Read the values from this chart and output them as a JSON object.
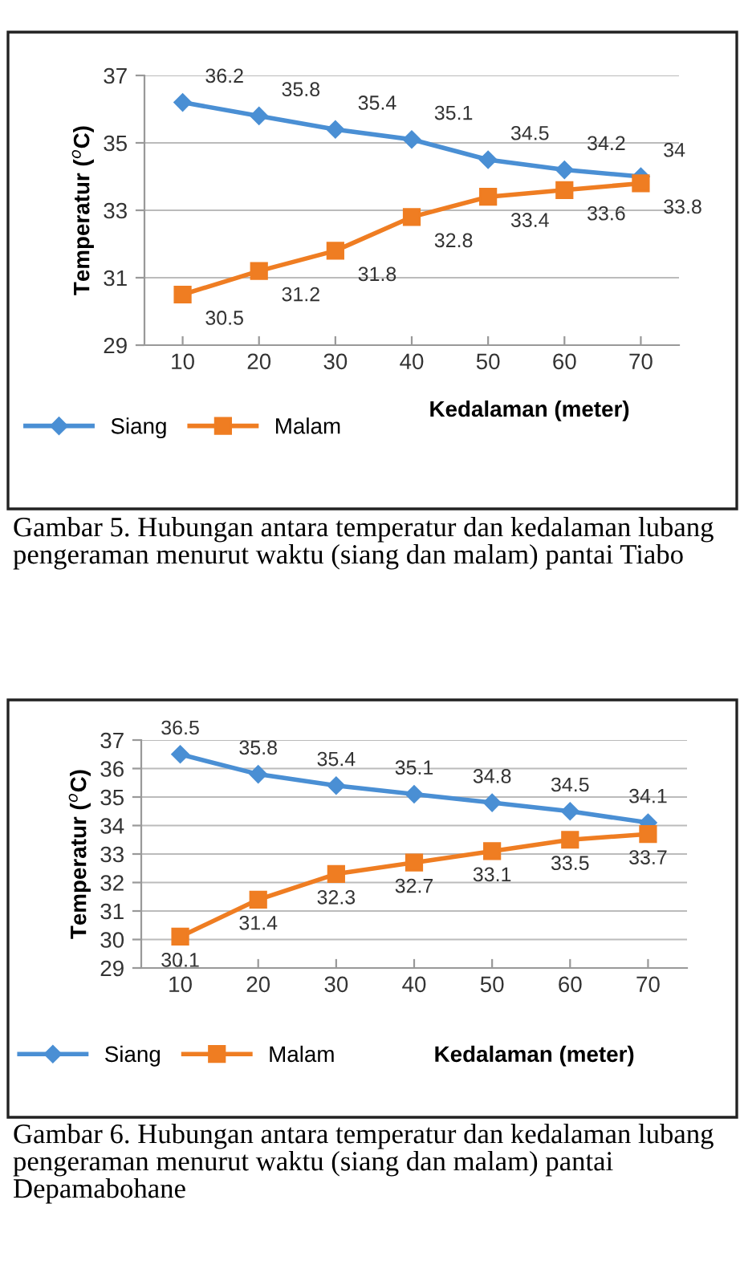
{
  "chart_data": [
    {
      "type": "line",
      "categories": [
        "10",
        "20",
        "30",
        "40",
        "50",
        "60",
        "70"
      ],
      "xlabel": "Kedalaman (meter)",
      "ylabel": "Temperatur ($^{o}$C)",
      "ylim": [
        29,
        37
      ],
      "yticks": [
        29,
        31,
        33,
        35,
        37
      ],
      "grid": "y",
      "legend": "bottom left",
      "data_labels": true,
      "series": [
        {
          "name": "Siang",
          "color": "#4a8fd4",
          "marker": "diamond",
          "values": [
            36.2,
            35.8,
            35.4,
            35.1,
            34.5,
            34.2,
            34
          ]
        },
        {
          "name": "Malam",
          "color": "#ef7d22",
          "marker": "square",
          "values": [
            30.5,
            31.2,
            31.8,
            32.8,
            33.4,
            33.6,
            33.8
          ]
        }
      ],
      "annotations": [
        "Gambar 5. Hubungan antara temperatur dan kedalaman lubang pengeraman menurut waktu (siang dan malam) pantai Tiabo"
      ]
    },
    {
      "type": "line",
      "categories": [
        "10",
        "20",
        "30",
        "40",
        "50",
        "60",
        "70"
      ],
      "xlabel": "Kedalaman (meter)",
      "ylabel": "Temperatur ($^{o}$C)",
      "ylim": [
        29,
        37
      ],
      "yticks": [
        29,
        30,
        31,
        32,
        33,
        34,
        35,
        36,
        37
      ],
      "grid": "y",
      "legend": "bottom left",
      "data_labels": true,
      "series": [
        {
          "name": "Siang",
          "color": "#4a8fd4",
          "marker": "diamond",
          "values": [
            36.5,
            35.8,
            35.4,
            35.1,
            34.8,
            34.5,
            34.1
          ]
        },
        {
          "name": "Malam",
          "color": "#ef7d22",
          "marker": "square",
          "values": [
            30.1,
            31.4,
            32.3,
            32.7,
            33.1,
            33.5,
            33.7
          ]
        }
      ],
      "annotations": [
        "Gambar 6. Hubungan antara temperatur dan kedalaman lubang pengeraman menurut waktu (siang dan malam) pantai Depamabohane"
      ]
    }
  ]
}
